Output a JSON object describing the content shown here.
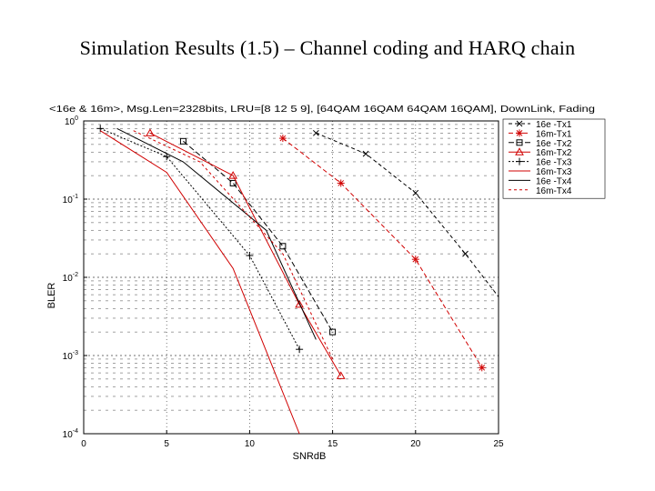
{
  "slide": {
    "title": "Simulation Results (1.5) – Channel coding and HARQ chain"
  },
  "chart_data": {
    "type": "line",
    "title": "<16e & 16m>, Msg.Len=2328bits, LRU=[8 12 5 9], [64QAM 16QAM 64QAM 16QAM], DownLink, Fading",
    "xlabel": "SNRdB",
    "ylabel": "BLER",
    "xlim": [
      0,
      25
    ],
    "ylim": [
      0.0001,
      1
    ],
    "yscale": "log",
    "xticks": [
      "0",
      "5",
      "10",
      "15",
      "20",
      "25"
    ],
    "yticks": [
      "10^0",
      "10^-1",
      "10^-2",
      "10^-3",
      "10^-4"
    ],
    "grid": true,
    "legend_position": "top-right",
    "series": [
      {
        "name": "16e -Tx1",
        "color": "#000000",
        "dash": "4,3",
        "marker": "x",
        "x": [
          14,
          17,
          20,
          23,
          26
        ],
        "y": [
          0.7,
          0.38,
          0.12,
          0.02,
          0.003
        ]
      },
      {
        "name": "16m-Tx1",
        "color": "#d00000",
        "dash": "5,3",
        "marker": "star",
        "x": [
          12,
          15.5,
          20,
          24
        ],
        "y": [
          0.6,
          0.16,
          0.017,
          0.0007
        ]
      },
      {
        "name": "16e -Tx2",
        "color": "#000000",
        "dash": "6,3",
        "marker": "square",
        "x": [
          6,
          9,
          12,
          15
        ],
        "y": [
          0.55,
          0.16,
          0.025,
          0.002
        ]
      },
      {
        "name": "16m-Tx2",
        "color": "#d00000",
        "dash": "",
        "marker": "triangle",
        "x": [
          4,
          9,
          13,
          15.5
        ],
        "y": [
          0.7,
          0.2,
          0.0045,
          0.00055
        ]
      },
      {
        "name": "16e -Tx3",
        "color": "#000000",
        "dash": "2,2",
        "marker": "plus",
        "x": [
          1,
          5,
          10,
          13
        ],
        "y": [
          0.8,
          0.35,
          0.019,
          0.0012
        ]
      },
      {
        "name": "16m-Tx3",
        "color": "#d00000",
        "dash": "",
        "marker": "none",
        "x": [
          1,
          5,
          9,
          13
        ],
        "y": [
          0.75,
          0.22,
          0.013,
          0.0001
        ]
      },
      {
        "name": "16e -Tx4",
        "color": "#000000",
        "dash": "",
        "marker": "none",
        "x": [
          2,
          6,
          11,
          14
        ],
        "y": [
          0.8,
          0.3,
          0.04,
          0.0016
        ]
      },
      {
        "name": "16m-Tx4",
        "color": "#d00000",
        "dash": "3,3",
        "marker": "none",
        "x": [
          3,
          7,
          12,
          15
        ],
        "y": [
          0.75,
          0.3,
          0.02,
          0.0009
        ]
      }
    ]
  }
}
